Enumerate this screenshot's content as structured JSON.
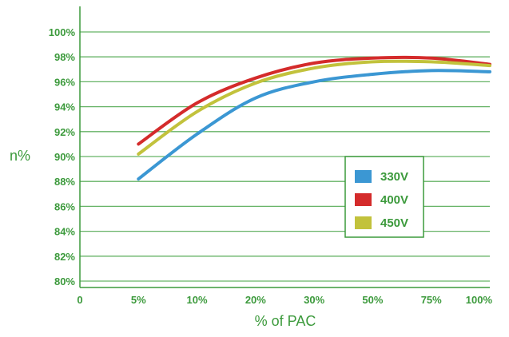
{
  "chart_data": {
    "type": "line",
    "title": "",
    "xlabel": "% of PAC",
    "ylabel": "n%",
    "x_categories": [
      "0",
      "5%",
      "10%",
      "20%",
      "30%",
      "50%",
      "75%",
      "100%"
    ],
    "y_ticks": [
      "80%",
      "82%",
      "84%",
      "86%",
      "88%",
      "90%",
      "92%",
      "94%",
      "96%",
      "98%",
      "100%"
    ],
    "ylim": [
      80,
      100
    ],
    "grid": "horizontal",
    "legend_position": "center-right",
    "colors": {
      "text": "#3c9a3c",
      "axis": "#3c9a3c",
      "grid": "#66b366",
      "legend_border": "#3c9a3c"
    },
    "series": [
      {
        "name": "330V",
        "color": "#3b97d3",
        "points": [
          {
            "x": "5%",
            "y": 88.2
          },
          {
            "x": "10%",
            "y": 91.8
          },
          {
            "x": "20%",
            "y": 94.7
          },
          {
            "x": "30%",
            "y": 96.0
          },
          {
            "x": "50%",
            "y": 96.6
          },
          {
            "x": "75%",
            "y": 96.9
          },
          {
            "x": "100%",
            "y": 96.8
          }
        ]
      },
      {
        "name": "400V",
        "color": "#d42b2b",
        "points": [
          {
            "x": "5%",
            "y": 91.0
          },
          {
            "x": "10%",
            "y": 94.3
          },
          {
            "x": "20%",
            "y": 96.3
          },
          {
            "x": "30%",
            "y": 97.5
          },
          {
            "x": "50%",
            "y": 97.9
          },
          {
            "x": "75%",
            "y": 97.9
          },
          {
            "x": "100%",
            "y": 97.4
          }
        ]
      },
      {
        "name": "450V",
        "color": "#c2c23c",
        "points": [
          {
            "x": "5%",
            "y": 90.2
          },
          {
            "x": "10%",
            "y": 93.6
          },
          {
            "x": "20%",
            "y": 95.9
          },
          {
            "x": "30%",
            "y": 97.1
          },
          {
            "x": "50%",
            "y": 97.6
          },
          {
            "x": "75%",
            "y": 97.6
          },
          {
            "x": "100%",
            "y": 97.3
          }
        ]
      }
    ]
  }
}
